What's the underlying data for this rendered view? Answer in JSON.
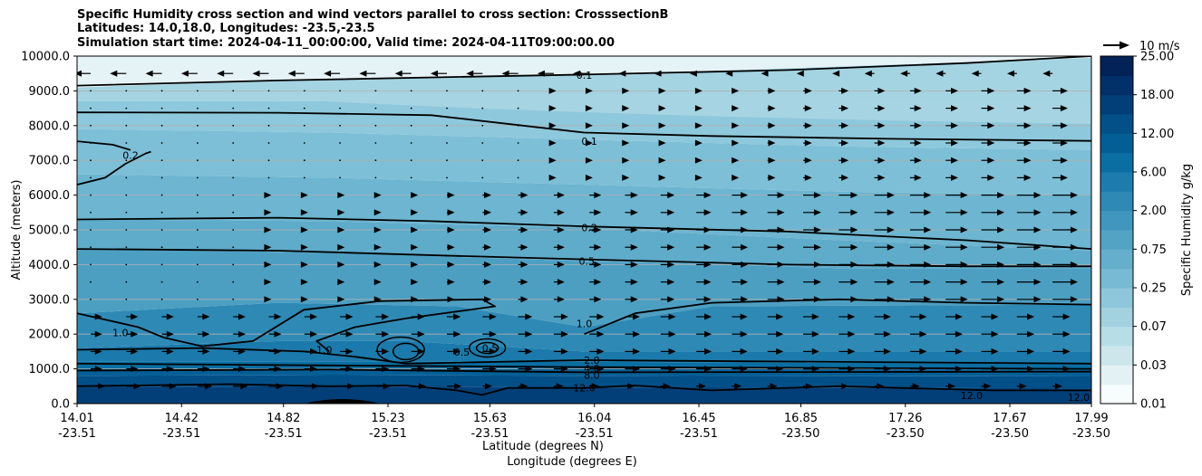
{
  "chart_data": {
    "type": "contour",
    "title_lines": [
      "Specific Humidity cross section and wind vectors parallel to cross section: CrosssectionB",
      "Latitudes: 14.0,18.0, Longitudes: -23.5,-23.5",
      "Simulation start time: 2024-04-11_00:00:00, Valid time: 2024-04-11T09:00:00.00"
    ],
    "ylabel": "Altitude (meters)",
    "xlabel_lat": "Latitude (degrees N)",
    "xlabel_lon": "Longitude (degrees E)",
    "ylim": [
      0,
      10000
    ],
    "y_ticks": [
      "0.0",
      "1000.0",
      "2000.0",
      "3000.0",
      "4000.0",
      "5000.0",
      "6000.0",
      "7000.0",
      "8000.0",
      "9000.0",
      "10000.0"
    ],
    "x_ticks": [
      {
        "lat": "14.01",
        "lon": "-23.51"
      },
      {
        "lat": "14.42",
        "lon": "-23.51"
      },
      {
        "lat": "14.82",
        "lon": "-23.51"
      },
      {
        "lat": "15.23",
        "lon": "-23.51"
      },
      {
        "lat": "15.63",
        "lon": "-23.51"
      },
      {
        "lat": "16.04",
        "lon": "-23.51"
      },
      {
        "lat": "16.45",
        "lon": "-23.51"
      },
      {
        "lat": "16.85",
        "lon": "-23.50"
      },
      {
        "lat": "17.26",
        "lon": "-23.50"
      },
      {
        "lat": "17.67",
        "lon": "-23.50"
      },
      {
        "lat": "17.99",
        "lon": "-23.50"
      }
    ],
    "grid": "horizontal",
    "colorbar": {
      "label": "Specific Humidity g/kg",
      "tick_labels": [
        "0.01",
        "0.03",
        "0.07",
        "0.25",
        "0.75",
        "2.00",
        "6.00",
        "12.00",
        "18.00",
        "25.00"
      ],
      "levels": [
        0.01,
        0.02,
        0.03,
        0.05,
        0.07,
        0.1,
        0.25,
        0.5,
        0.75,
        1.0,
        2.0,
        4.0,
        6.0,
        8.0,
        12.0,
        15.0,
        18.0,
        20.0,
        25.0
      ],
      "colors": [
        "#f7fcfd",
        "#e3f1f4",
        "#cde6ec",
        "#b7dde7",
        "#a2d1e0",
        "#8ec7db",
        "#78bad3",
        "#65afcc",
        "#53a3c5",
        "#4196bd",
        "#2f89b5",
        "#1d7cac",
        "#0a6ea2",
        "#045e96",
        "#034f88",
        "#023f78",
        "#023068",
        "#022258"
      ]
    },
    "wind_reference": "10 m/s",
    "contour_labels": [
      {
        "text": "0.1",
        "x": 16.0,
        "y": 9450
      },
      {
        "text": "0.1",
        "x": 16.02,
        "y": 7550
      },
      {
        "text": "0.2",
        "x": 14.22,
        "y": 7150
      },
      {
        "text": "0.2",
        "x": 16.02,
        "y": 5060
      },
      {
        "text": "0.5",
        "x": 16.01,
        "y": 4100
      },
      {
        "text": "1.0",
        "x": 16.0,
        "y": 2300
      },
      {
        "text": "1.0",
        "x": 14.18,
        "y": 2050
      },
      {
        "text": "2.0",
        "x": 16.03,
        "y": 1250
      },
      {
        "text": "4.0",
        "x": 16.03,
        "y": 1020
      },
      {
        "text": "8.0",
        "x": 16.03,
        "y": 820
      },
      {
        "text": "12.0",
        "x": 16.0,
        "y": 460
      },
      {
        "text": "12.0",
        "x": 17.52,
        "y": 230
      },
      {
        "text": "12.0",
        "x": 17.94,
        "y": 180
      },
      {
        "text": "0.5",
        "x": 15.52,
        "y": 1480
      },
      {
        "text": "0.5",
        "x": 15.63,
        "y": 1600
      },
      {
        "text": "1.0",
        "x": 14.98,
        "y": 1550
      }
    ]
  }
}
